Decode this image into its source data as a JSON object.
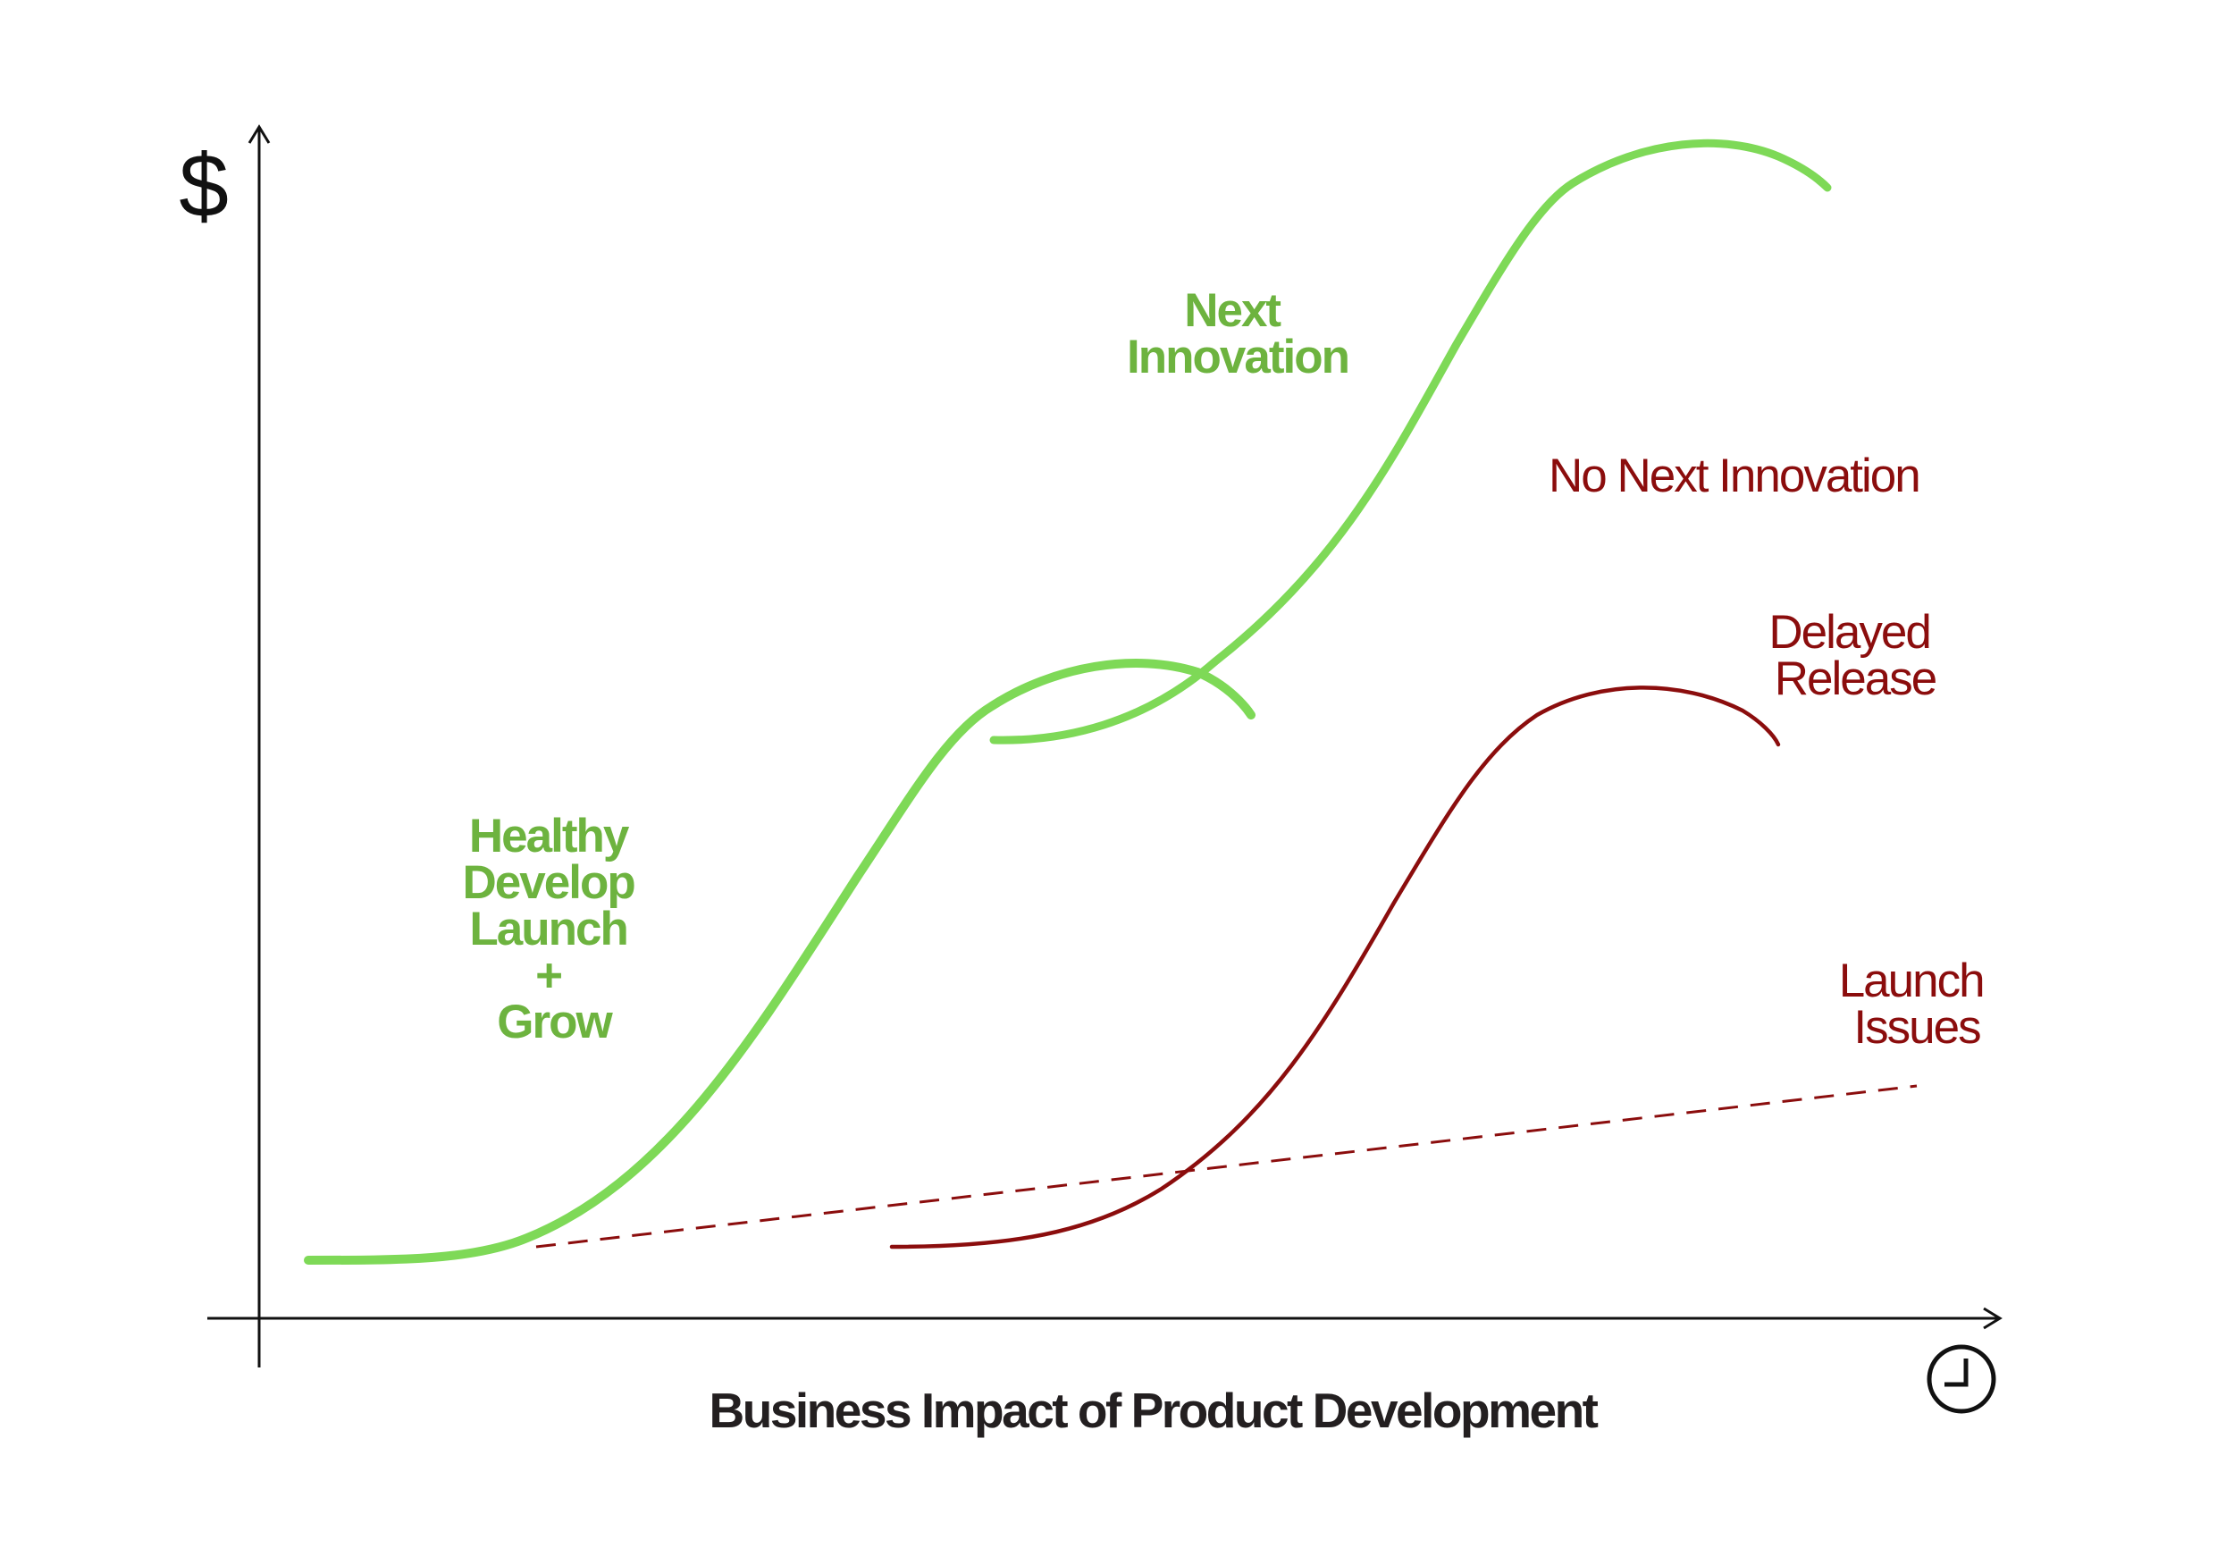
{
  "colors": {
    "healthy": "#7ed957",
    "healthy_text": "#6db33f",
    "problem": "#8b0d0d",
    "axis": "#111111",
    "title": "#231f20"
  },
  "axes": {
    "y_symbol": "$",
    "x_icon": "clock-icon"
  },
  "title": "Business Impact of Product Development",
  "labels": {
    "healthy": [
      "Healthy",
      "Develop",
      "Launch",
      "+",
      "Grow"
    ],
    "next_innovation": [
      "Next",
      "Innovation"
    ],
    "no_next_innovation": "No Next Innovation",
    "delayed_release": [
      "Delayed",
      "Release"
    ],
    "launch_issues": [
      "Launch",
      "Issues"
    ]
  }
}
